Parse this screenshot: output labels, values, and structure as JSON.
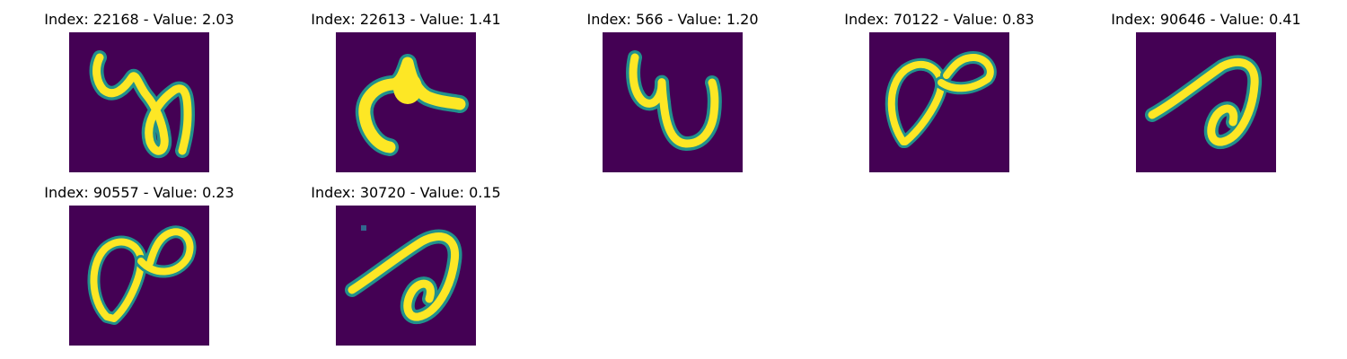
{
  "figure": {
    "colors": {
      "background": "#440154",
      "stroke_edge": "#21918c",
      "stroke_core": "#fde725"
    },
    "panels": [
      {
        "title": "Index: 22168 - Value: 2.03",
        "glyph": "digit-4-loop"
      },
      {
        "title": "Index: 22613 - Value: 1.41",
        "glyph": "digit-hook"
      },
      {
        "title": "Index: 566 - Value: 1.20",
        "glyph": "digit-4-loop"
      },
      {
        "title": "Index: 70122 - Value: 0.83",
        "glyph": "digit-8-loop"
      },
      {
        "title": "Index: 90646 - Value: 0.41",
        "glyph": "digit-a-loop"
      },
      {
        "title": "Index: 90557 - Value: 0.23",
        "glyph": "digit-8-loop"
      },
      {
        "title": "Index: 30720 - Value: 0.15",
        "glyph": "digit-a-loop"
      }
    ]
  }
}
